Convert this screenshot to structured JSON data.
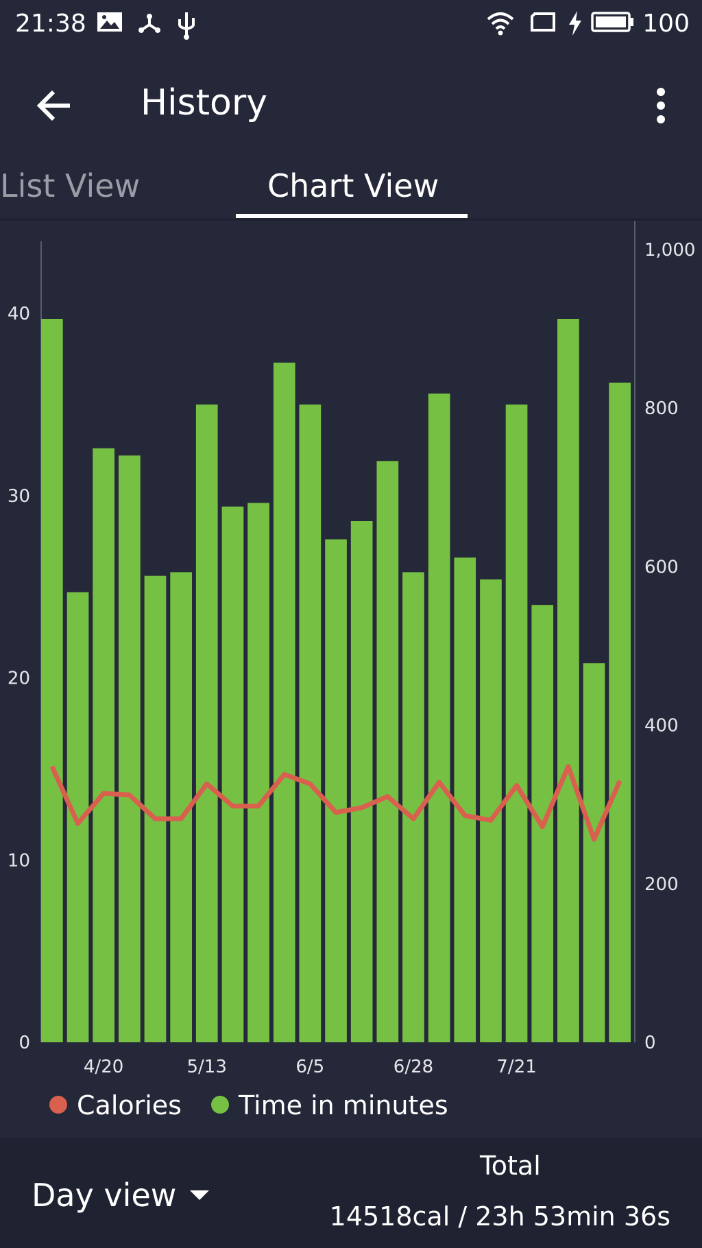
{
  "status_bar": {
    "time": "21:38",
    "battery": "100",
    "icons": [
      "image-icon",
      "share-icon",
      "usb-icon",
      "wifi-icon",
      "screen-icon",
      "charging-icon",
      "battery-icon"
    ]
  },
  "app_bar": {
    "title": "History",
    "back_icon": "back-arrow-icon",
    "menu_icon": "more-vert-icon"
  },
  "tabs": [
    {
      "label": "List View",
      "selected": false
    },
    {
      "label": "Chart View",
      "selected": true
    }
  ],
  "chart_data": {
    "type": "bar",
    "x_ticks": [
      "4/20",
      "5/13",
      "6/5",
      "6/28",
      "7/21"
    ],
    "left_axis": {
      "ticks": [
        "0",
        "10",
        "20",
        "30",
        "40"
      ],
      "range": [
        0,
        43.5
      ]
    },
    "right_axis": {
      "ticks": [
        "0",
        "200",
        "400",
        "600",
        "800",
        "1,000"
      ],
      "range": [
        0,
        1000
      ]
    },
    "series": [
      {
        "name": "Time in minutes",
        "type": "bar",
        "axis": "left",
        "color": "#76c043",
        "values": [
          39.7,
          24.7,
          32.6,
          32.2,
          25.6,
          25.8,
          35.0,
          29.4,
          29.6,
          37.3,
          35.0,
          27.6,
          28.6,
          31.9,
          25.8,
          35.6,
          26.6,
          25.4,
          35.0,
          24.0,
          39.7,
          20.8,
          36.2
        ]
      },
      {
        "name": "Calories",
        "type": "line",
        "axis": "right",
        "color": "#d9604f",
        "values": [
          348,
          276,
          314,
          312,
          282,
          282,
          326,
          298,
          298,
          338,
          326,
          290,
          296,
          310,
          282,
          328,
          286,
          280,
          324,
          272,
          348,
          256,
          330
        ]
      }
    ],
    "legend": [
      "Calories",
      "Time in minutes"
    ],
    "legend_position": "bottom-left"
  },
  "legend": {
    "calories_label": "Calories",
    "calories_color": "#d9604f",
    "time_label": "Time in minutes",
    "time_color": "#76c043"
  },
  "bottom_bar": {
    "view_selector": "Day view",
    "total_label": "Total",
    "total_value": "14518cal / 23h 53min 36s"
  }
}
